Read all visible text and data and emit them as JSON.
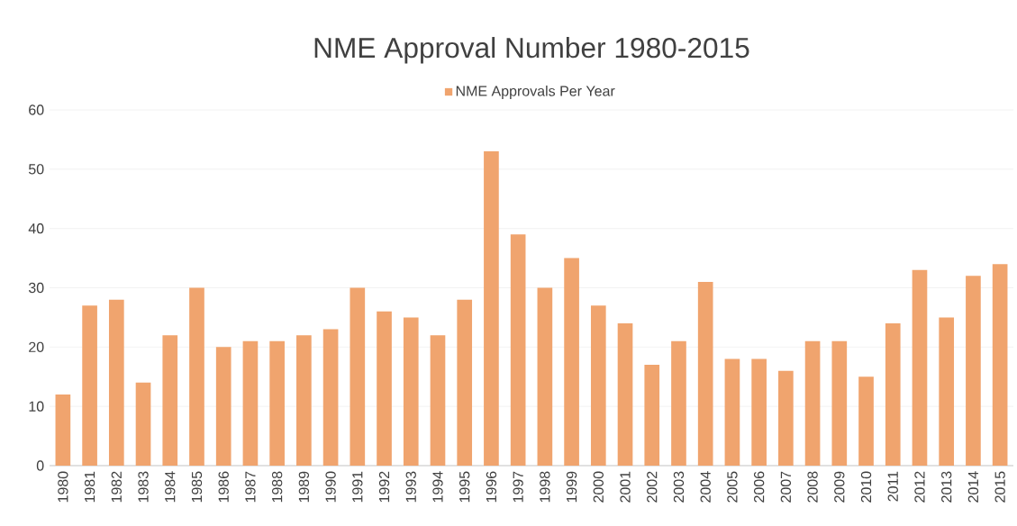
{
  "chart_data": {
    "type": "bar",
    "title": "NME Approval Number 1980-2015",
    "categories": [
      "1980",
      "1981",
      "1982",
      "1983",
      "1984",
      "1985",
      "1986",
      "1987",
      "1988",
      "1989",
      "1990",
      "1991",
      "1992",
      "1993",
      "1994",
      "1995",
      "1996",
      "1997",
      "1998",
      "1999",
      "2000",
      "2001",
      "2002",
      "2003",
      "2004",
      "2005",
      "2006",
      "2007",
      "2008",
      "2009",
      "2010",
      "2011",
      "2012",
      "2013",
      "2014",
      "2015"
    ],
    "series": [
      {
        "name": "NME Approvals Per Year",
        "color": "#f0a46e",
        "values": [
          12,
          27,
          28,
          14,
          22,
          30,
          20,
          21,
          21,
          22,
          23,
          30,
          26,
          25,
          22,
          28,
          53,
          39,
          30,
          35,
          27,
          24,
          17,
          21,
          31,
          18,
          18,
          16,
          21,
          21,
          15,
          24,
          33,
          25,
          32,
          34
        ]
      }
    ],
    "ylim": [
      0,
      60
    ],
    "yticks": [
      0,
      10,
      20,
      30,
      40,
      50,
      60
    ],
    "grid": "y",
    "legend": "top"
  }
}
